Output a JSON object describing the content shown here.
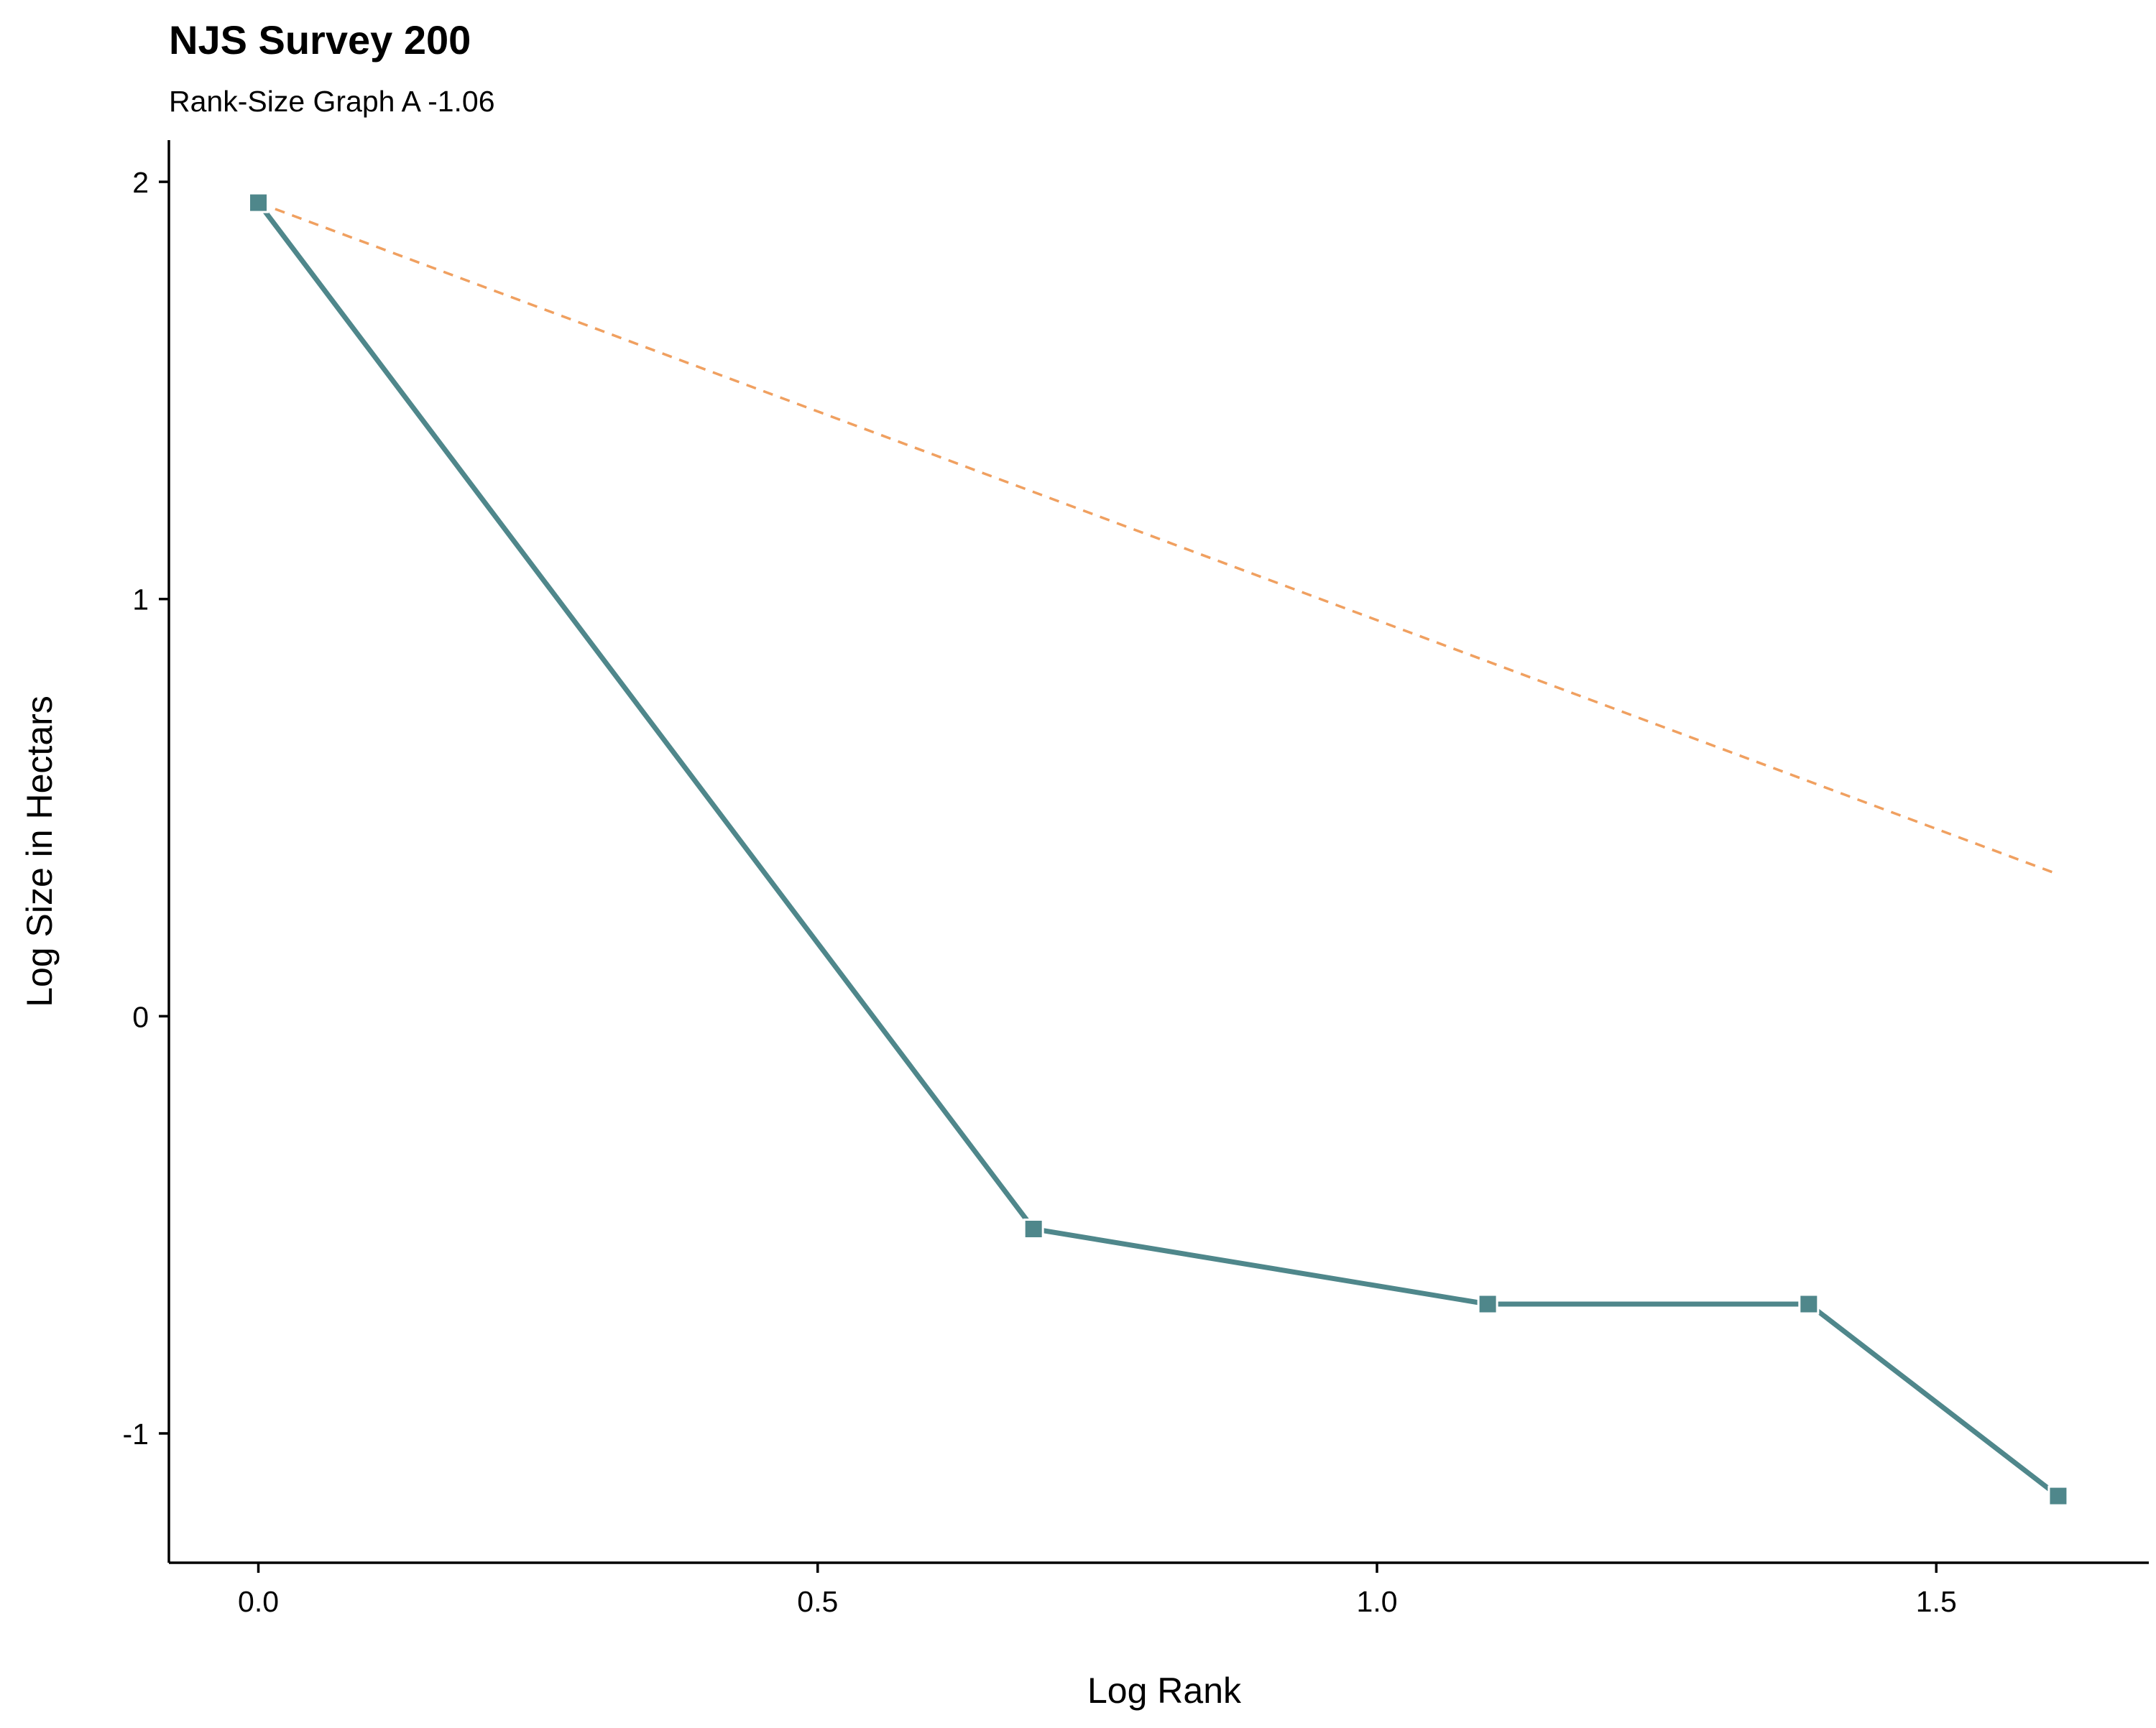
{
  "chart_data": {
    "type": "line",
    "title": "NJS Survey  200",
    "subtitle": "Rank-Size Graph A  -1.06",
    "xlabel": "Log Rank",
    "ylabel": "Log Size in Hectars",
    "xlim": [
      -0.08,
      1.69
    ],
    "ylim": [
      -1.31,
      2.1
    ],
    "x_ticks": [
      0.0,
      0.5,
      1.0,
      1.5
    ],
    "x_tick_labels": [
      "0.0",
      "0.5",
      "1.0",
      "1.5"
    ],
    "y_ticks": [
      -1,
      0,
      1,
      2
    ],
    "y_tick_labels": [
      "-1",
      "0",
      "1",
      "2"
    ],
    "grid": false,
    "legend": "none",
    "series": [
      {
        "style": "solid-line-square-markers",
        "color": "#4f878b",
        "x": [
          0.0,
          0.693,
          1.099,
          1.386,
          1.609
        ],
        "y": [
          1.95,
          -0.51,
          -0.69,
          -0.69,
          -1.15
        ]
      },
      {
        "style": "dashed-reference-line",
        "color": "#f0a060",
        "x": [
          0.0,
          1.609
        ],
        "y": [
          1.95,
          0.34
        ]
      }
    ]
  }
}
